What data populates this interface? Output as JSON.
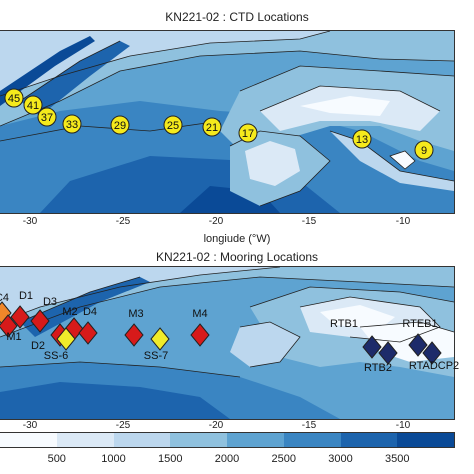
{
  "top_panel": {
    "title": "KN221-02 : CTD Locations",
    "xlabel": "longiude (°W)",
    "x_ticks": [
      "-30",
      "-25",
      "-20",
      "-15",
      "-10"
    ],
    "stations": [
      "45",
      "41",
      "37",
      "33",
      "29",
      "25",
      "21",
      "17",
      "13",
      "9"
    ],
    "marker_color": "#f5ea1c"
  },
  "bottom_panel": {
    "title": "KN221-02 : Mooring Locations",
    "x_ticks": [
      "-30",
      "-25",
      "-20",
      "-15",
      "-10"
    ],
    "labels": [
      "C4",
      "D1",
      "D3",
      "M1",
      "M2",
      "D4",
      "D2",
      "SS-6",
      "M3",
      "SS-7",
      "M4",
      "RTB1",
      "RTB2",
      "RTEB1",
      "RTADCP2"
    ],
    "colors": {
      "red": "#d71a1a",
      "yellow": "#f0ec2a",
      "navy": "#1d2b6a",
      "orange": "#f0872a"
    }
  },
  "colorbar": {
    "labels": [
      "500",
      "1000",
      "1500",
      "2000",
      "2500",
      "3000",
      "3500"
    ],
    "colors": [
      "#f7fbff",
      "#dbe9f6",
      "#bcd7ee",
      "#8fc1de",
      "#5ea3d1",
      "#3a85c2",
      "#1d64ad",
      "#0a4a97"
    ]
  }
}
